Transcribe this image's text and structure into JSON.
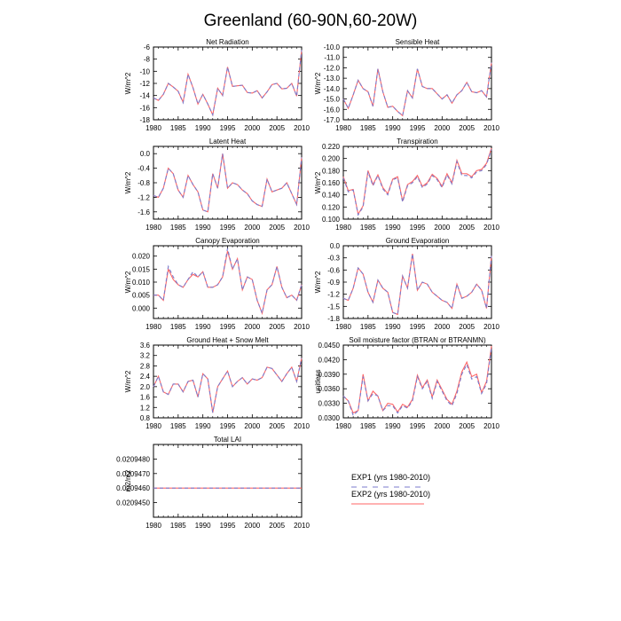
{
  "figure": {
    "title": "Greenland (60-90N,60-20W)",
    "legend": [
      {
        "label": "EXP1 (yrs 1980-2010)",
        "color": "#7b7bcc",
        "dash": "dashed"
      },
      {
        "label": "EXP2 (yrs 1980-2010)",
        "color": "#ff6666",
        "dash": "solid"
      }
    ]
  },
  "chart_data": [
    {
      "type": "line",
      "title": "Net Radiation",
      "ylabel": "W/m^2",
      "xlim": [
        1980,
        2010
      ],
      "ylim": [
        -18,
        -6
      ],
      "xticks": [
        "1980",
        "1985",
        "1990",
        "1995",
        "2000",
        "2005",
        "2010"
      ],
      "yticks": [
        "-6",
        "-8",
        "-10",
        "-12",
        "-14",
        "-16",
        "-18"
      ],
      "x": [
        1980,
        1981,
        1982,
        1983,
        1984,
        1985,
        1986,
        1987,
        1988,
        1989,
        1990,
        1991,
        1992,
        1993,
        1994,
        1995,
        1996,
        1997,
        1998,
        1999,
        2000,
        2001,
        2002,
        2003,
        2004,
        2005,
        2006,
        2007,
        2008,
        2009,
        2010
      ],
      "series": [
        {
          "name": "EXP1 (yrs 1980-2010)",
          "values": [
            -14.4,
            -14.8,
            -13.8,
            -12,
            -12.6,
            -13.3,
            -15.2,
            -10.5,
            -12.7,
            -15.4,
            -13.8,
            -15.4,
            -17.2,
            -12.8,
            -14,
            -9.3,
            -12.5,
            -12.4,
            -12.3,
            -13.5,
            -13.6,
            -13.2,
            -14.4,
            -13.4,
            -12.2,
            -12,
            -12.9,
            -12.8,
            -12,
            -14.1,
            -6.5
          ]
        },
        {
          "name": "EXP2 (yrs 1980-2010)",
          "values": [
            -14.4,
            -14.8,
            -13.8,
            -12,
            -12.6,
            -13.3,
            -15.1,
            -10.5,
            -12.7,
            -15.4,
            -13.8,
            -15.4,
            -17.2,
            -12.8,
            -14,
            -9.3,
            -12.5,
            -12.4,
            -12.3,
            -13.5,
            -13.6,
            -13.2,
            -14.4,
            -13.4,
            -12.2,
            -12,
            -12.9,
            -12.8,
            -12,
            -14.1,
            -6.5
          ]
        }
      ]
    },
    {
      "type": "line",
      "title": "Sensible Heat",
      "ylabel": "W/m^2",
      "xlim": [
        1980,
        2010
      ],
      "ylim": [
        -17,
        -10
      ],
      "xticks": [
        "1980",
        "1985",
        "1990",
        "1995",
        "2000",
        "2005",
        "2010"
      ],
      "yticks": [
        "-10.0",
        "-11.0",
        "-12.0",
        "-13.0",
        "-14.0",
        "-15.0",
        "-16.0",
        "-17.0"
      ],
      "x": [
        1980,
        1981,
        1982,
        1983,
        1984,
        1985,
        1986,
        1987,
        1988,
        1989,
        1990,
        1991,
        1992,
        1993,
        1994,
        1995,
        1996,
        1997,
        1998,
        1999,
        2000,
        2001,
        2002,
        2003,
        2004,
        2005,
        2006,
        2007,
        2008,
        2009,
        2010
      ],
      "series": [
        {
          "name": "EXP1 (yrs 1980-2010)",
          "values": [
            -15,
            -15.9,
            -14.6,
            -13.2,
            -14,
            -14.3,
            -15.7,
            -12.1,
            -14.3,
            -15.8,
            -15.7,
            -16.2,
            -16.6,
            -14.2,
            -14.9,
            -12.1,
            -13.8,
            -14,
            -14,
            -14.5,
            -15,
            -14.6,
            -15.4,
            -14.6,
            -14.2,
            -13.4,
            -14.3,
            -14.4,
            -14.2,
            -14.8,
            -11.5
          ]
        },
        {
          "name": "EXP2 (yrs 1980-2010)",
          "values": [
            -15,
            -15.9,
            -14.6,
            -13.2,
            -14,
            -14.3,
            -15.7,
            -12.1,
            -14.3,
            -15.8,
            -15.7,
            -16.2,
            -16.6,
            -14.2,
            -14.9,
            -12.1,
            -13.8,
            -14,
            -14,
            -14.5,
            -15,
            -14.6,
            -15.4,
            -14.6,
            -14.2,
            -13.4,
            -14.3,
            -14.4,
            -14.2,
            -14.8,
            -11.5
          ]
        }
      ]
    },
    {
      "type": "line",
      "title": "Latent Heat",
      "ylabel": "W/m^2",
      "xlim": [
        1980,
        2010
      ],
      "ylim": [
        -1.8,
        0.2
      ],
      "xticks": [
        "1980",
        "1985",
        "1990",
        "1995",
        "2000",
        "2005",
        "2010"
      ],
      "yticks": [
        "0.0",
        "-0.4",
        "-0.8",
        "-1.2",
        "-1.6"
      ],
      "x": [
        1980,
        1981,
        1982,
        1983,
        1984,
        1985,
        1986,
        1987,
        1988,
        1989,
        1990,
        1991,
        1992,
        1993,
        1994,
        1995,
        1996,
        1997,
        1998,
        1999,
        2000,
        2001,
        2002,
        2003,
        2004,
        2005,
        2006,
        2007,
        2008,
        2009,
        2010
      ],
      "series": [
        {
          "name": "EXP1 (yrs 1980-2010)",
          "values": [
            -1.15,
            -1.2,
            -0.95,
            -0.4,
            -0.55,
            -1,
            -1.2,
            -0.6,
            -0.85,
            -1.05,
            -1.55,
            -1.6,
            -0.55,
            -0.95,
            0,
            -0.95,
            -0.8,
            -0.85,
            -1,
            -1.1,
            -1.3,
            -1.4,
            -1.45,
            -0.7,
            -1.05,
            -1,
            -0.95,
            -0.8,
            -1.1,
            -1.4,
            -0.1
          ]
        },
        {
          "name": "EXP2 (yrs 1980-2010)",
          "values": [
            -1.15,
            -1.2,
            -0.95,
            -0.4,
            -0.55,
            -1,
            -1.2,
            -0.6,
            -0.85,
            -1.05,
            -1.55,
            -1.6,
            -0.55,
            -0.95,
            0,
            -0.95,
            -0.8,
            -0.85,
            -1,
            -1.1,
            -1.3,
            -1.4,
            -1.45,
            -0.7,
            -1.05,
            -1,
            -0.95,
            -0.8,
            -1.1,
            -1.4,
            -0.1
          ]
        }
      ]
    },
    {
      "type": "line",
      "title": "Transpiration",
      "ylabel": "W/m^2",
      "xlim": [
        1980,
        2010
      ],
      "ylim": [
        0.1,
        0.22
      ],
      "xticks": [
        "1980",
        "1985",
        "1990",
        "1995",
        "2000",
        "2005",
        "2010"
      ],
      "yticks": [
        "0.220",
        "0.200",
        "0.180",
        "0.160",
        "0.140",
        "0.120",
        "0.100"
      ],
      "x": [
        1980,
        1981,
        1982,
        1983,
        1984,
        1985,
        1986,
        1987,
        1988,
        1989,
        1990,
        1991,
        1992,
        1993,
        1994,
        1995,
        1996,
        1997,
        1998,
        1999,
        2000,
        2001,
        2002,
        2003,
        2004,
        2005,
        2006,
        2007,
        2008,
        2009,
        2010
      ],
      "series": [
        {
          "name": "EXP1 (yrs 1980-2010)",
          "values": [
            0.168,
            0.145,
            0.148,
            0.107,
            0.12,
            0.178,
            0.155,
            0.172,
            0.15,
            0.14,
            0.165,
            0.168,
            0.128,
            0.155,
            0.16,
            0.17,
            0.152,
            0.158,
            0.172,
            0.165,
            0.152,
            0.173,
            0.158,
            0.195,
            0.172,
            0.172,
            0.168,
            0.178,
            0.18,
            0.19,
            0.215
          ]
        },
        {
          "name": "EXP2 (yrs 1980-2010)",
          "values": [
            0.17,
            0.147,
            0.149,
            0.108,
            0.122,
            0.18,
            0.157,
            0.173,
            0.152,
            0.142,
            0.166,
            0.17,
            0.13,
            0.157,
            0.162,
            0.172,
            0.154,
            0.16,
            0.174,
            0.167,
            0.154,
            0.175,
            0.16,
            0.197,
            0.175,
            0.175,
            0.17,
            0.18,
            0.182,
            0.192,
            0.217
          ]
        }
      ]
    },
    {
      "type": "line",
      "title": "Canopy Evaporation",
      "ylabel": "W/m^2",
      "xlim": [
        1980,
        2010
      ],
      "ylim": [
        -0.004,
        0.024
      ],
      "xticks": [
        "1980",
        "1985",
        "1990",
        "1995",
        "2000",
        "2005",
        "2010"
      ],
      "yticks": [
        "0.020",
        "0.015",
        "0.010",
        "0.005",
        "0.000"
      ],
      "x": [
        1980,
        1981,
        1982,
        1983,
        1984,
        1985,
        1986,
        1987,
        1988,
        1989,
        1990,
        1991,
        1992,
        1993,
        1994,
        1995,
        1996,
        1997,
        1998,
        1999,
        2000,
        2001,
        2002,
        2003,
        2004,
        2005,
        2006,
        2007,
        2008,
        2009,
        2010
      ],
      "series": [
        {
          "name": "EXP1 (yrs 1980-2010)",
          "values": [
            0.005,
            0.005,
            0.003,
            0.016,
            0.012,
            0.009,
            0.008,
            0.011,
            0.014,
            0.012,
            0.014,
            0.008,
            0.008,
            0.009,
            0.012,
            0.023,
            0.015,
            0.019,
            0.007,
            0.012,
            0.011,
            0.003,
            -0.002,
            0.007,
            0.009,
            0.016,
            0.008,
            0.004,
            0.005,
            0.003,
            0.009
          ]
        },
        {
          "name": "EXP2 (yrs 1980-2010)",
          "values": [
            0.005,
            0.005,
            0.003,
            0.015,
            0.011,
            0.009,
            0.008,
            0.011,
            0.013,
            0.012,
            0.014,
            0.008,
            0.008,
            0.009,
            0.012,
            0.022,
            0.015,
            0.019,
            0.007,
            0.012,
            0.011,
            0.003,
            -0.002,
            0.007,
            0.009,
            0.016,
            0.008,
            0.004,
            0.005,
            0.003,
            0.009
          ]
        }
      ]
    },
    {
      "type": "line",
      "title": "Ground Evaporation",
      "ylabel": "W/m^2",
      "xlim": [
        1980,
        2010
      ],
      "ylim": [
        -1.8,
        0
      ],
      "xticks": [
        "1980",
        "1985",
        "1990",
        "1995",
        "2000",
        "2005",
        "2010"
      ],
      "yticks": [
        "0.0",
        "-0.3",
        "-0.6",
        "-0.9",
        "-1.2",
        "-1.5",
        "-1.8"
      ],
      "x": [
        1980,
        1981,
        1982,
        1983,
        1984,
        1985,
        1986,
        1987,
        1988,
        1989,
        1990,
        1991,
        1992,
        1993,
        1994,
        1995,
        1996,
        1997,
        1998,
        1999,
        2000,
        2001,
        2002,
        2003,
        2004,
        2005,
        2006,
        2007,
        2008,
        2009,
        2010
      ],
      "series": [
        {
          "name": "EXP1 (yrs 1980-2010)",
          "values": [
            -1.3,
            -1.35,
            -1.05,
            -0.55,
            -0.7,
            -1.15,
            -1.4,
            -0.85,
            -1.05,
            -1.15,
            -1.65,
            -1.7,
            -0.75,
            -1.05,
            -0.2,
            -1.1,
            -0.9,
            -0.95,
            -1.15,
            -1.25,
            -1.35,
            -1.4,
            -1.55,
            -0.95,
            -1.3,
            -1.25,
            -1.15,
            -0.95,
            -1.1,
            -1.55,
            -0.25
          ]
        },
        {
          "name": "EXP2 (yrs 1980-2010)",
          "values": [
            -1.3,
            -1.35,
            -1.05,
            -0.55,
            -0.7,
            -1.15,
            -1.4,
            -0.85,
            -1.05,
            -1.15,
            -1.65,
            -1.7,
            -0.75,
            -1.05,
            -0.2,
            -1.1,
            -0.9,
            -0.95,
            -1.15,
            -1.25,
            -1.35,
            -1.4,
            -1.55,
            -0.95,
            -1.3,
            -1.25,
            -1.15,
            -0.95,
            -1.1,
            -1.55,
            -0.25
          ]
        }
      ]
    },
    {
      "type": "line",
      "title": "Ground Heat + Snow Melt",
      "ylabel": "W/m^2",
      "xlim": [
        1980,
        2010
      ],
      "ylim": [
        0.8,
        3.6
      ],
      "xticks": [
        "1980",
        "1985",
        "1990",
        "1995",
        "2000",
        "2005",
        "2010"
      ],
      "yticks": [
        "3.6",
        "3.2",
        "2.8",
        "2.4",
        "2.0",
        "1.6",
        "1.2",
        "0.8"
      ],
      "x": [
        1980,
        1981,
        1982,
        1983,
        1984,
        1985,
        1986,
        1987,
        1988,
        1989,
        1990,
        1991,
        1992,
        1993,
        1994,
        1995,
        1996,
        1997,
        1998,
        1999,
        2000,
        2001,
        2002,
        2003,
        2004,
        2005,
        2006,
        2007,
        2008,
        2009,
        2010
      ],
      "series": [
        {
          "name": "EXP1 (yrs 1980-2010)",
          "values": [
            2,
            2.4,
            1.8,
            1.7,
            2.1,
            2.1,
            1.8,
            2.2,
            2.25,
            1.6,
            2.5,
            2.3,
            1,
            2,
            2.3,
            2.6,
            2,
            2.2,
            2.35,
            2.1,
            2.3,
            2.25,
            2.35,
            2.75,
            2.7,
            2.45,
            2.2,
            2.5,
            2.75,
            2.2,
            3.1
          ]
        },
        {
          "name": "EXP2 (yrs 1980-2010)",
          "values": [
            2,
            2.4,
            1.8,
            1.7,
            2.1,
            2.1,
            1.8,
            2.2,
            2.25,
            1.6,
            2.5,
            2.3,
            1,
            2,
            2.3,
            2.6,
            2,
            2.2,
            2.35,
            2.1,
            2.3,
            2.25,
            2.35,
            2.75,
            2.7,
            2.45,
            2.2,
            2.5,
            2.75,
            2.2,
            3.1
          ]
        }
      ]
    },
    {
      "type": "line",
      "title": "Soil moisture factor (BTRAN or BTRANMN)",
      "ylabel": "unitless",
      "xlim": [
        1980,
        2010
      ],
      "ylim": [
        0.03,
        0.045
      ],
      "xticks": [
        "1980",
        "1985",
        "1990",
        "1995",
        "2000",
        "2005",
        "2010"
      ],
      "yticks": [
        "0.0450",
        "0.0420",
        "0.0390",
        "0.0360",
        "0.0330",
        "0.0300"
      ],
      "x": [
        1980,
        1981,
        1982,
        1983,
        1984,
        1985,
        1986,
        1987,
        1988,
        1989,
        1990,
        1991,
        1992,
        1993,
        1994,
        1995,
        1996,
        1997,
        1998,
        1999,
        2000,
        2001,
        2002,
        2003,
        2004,
        2005,
        2006,
        2007,
        2008,
        2009,
        2010
      ],
      "series": [
        {
          "name": "EXP1 (yrs 1980-2010)",
          "values": [
            0.0345,
            0.0335,
            0.0305,
            0.0315,
            0.0385,
            0.0335,
            0.035,
            0.0345,
            0.0315,
            0.0325,
            0.0325,
            0.031,
            0.0325,
            0.032,
            0.0335,
            0.0385,
            0.036,
            0.0375,
            0.034,
            0.0375,
            0.0355,
            0.0335,
            0.0325,
            0.035,
            0.039,
            0.041,
            0.038,
            0.0385,
            0.035,
            0.037,
            0.0445
          ]
        },
        {
          "name": "EXP2 (yrs 1980-2010)",
          "values": [
            0.0345,
            0.0335,
            0.031,
            0.0315,
            0.039,
            0.0335,
            0.0355,
            0.0345,
            0.0315,
            0.033,
            0.0328,
            0.0312,
            0.0328,
            0.0322,
            0.0338,
            0.0388,
            0.0362,
            0.0378,
            0.0343,
            0.0378,
            0.0358,
            0.0338,
            0.0328,
            0.0355,
            0.0395,
            0.0415,
            0.0385,
            0.039,
            0.0352,
            0.0375,
            0.0448
          ]
        }
      ]
    },
    {
      "type": "line",
      "title": "Total LAI",
      "ylabel": "m2/m2",
      "xlim": [
        1980,
        2010
      ],
      "ylim": [
        0.020944,
        0.020949
      ],
      "xticks": [
        "1980",
        "1985",
        "1990",
        "1995",
        "2000",
        "2005",
        "2010"
      ],
      "yticks": [
        "0.0209480",
        "0.0209470",
        "0.0209460",
        "0.0209450"
      ],
      "x": [
        1980,
        2010
      ],
      "series": [
        {
          "name": "EXP1 (yrs 1980-2010)",
          "values": [
            0.020946,
            0.020946
          ]
        },
        {
          "name": "EXP2 (yrs 1980-2010)",
          "values": [
            0.020946,
            0.020946
          ]
        }
      ]
    }
  ]
}
